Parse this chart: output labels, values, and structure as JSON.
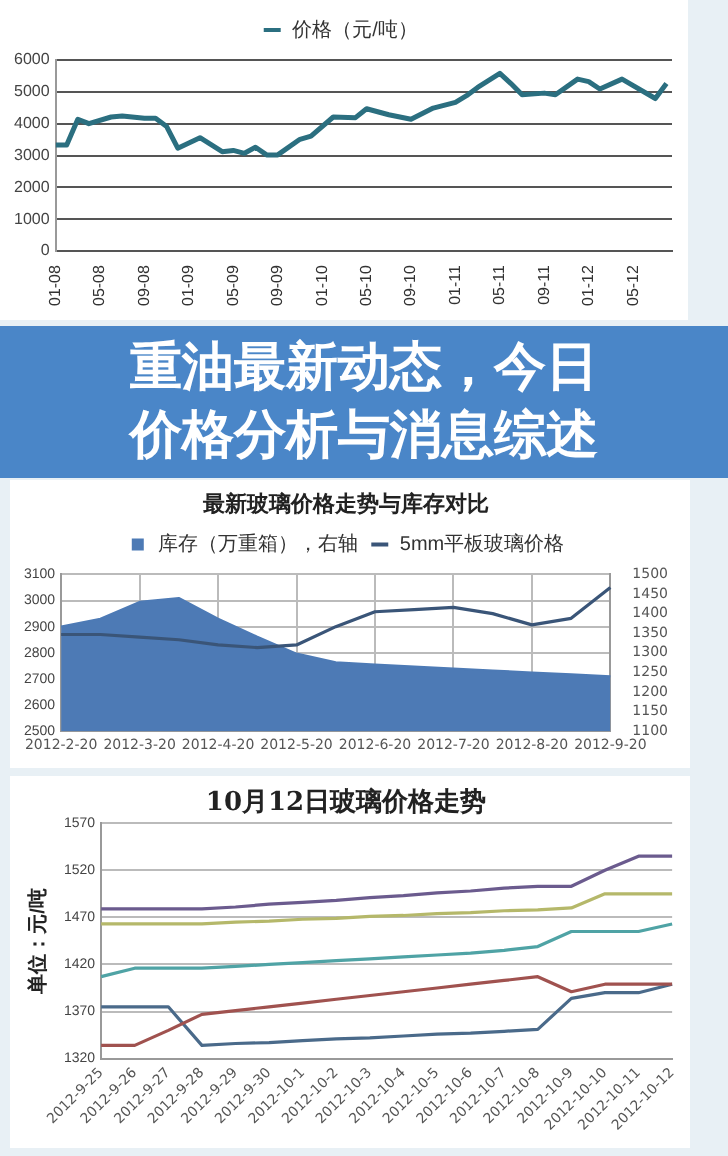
{
  "chart_data": [
    {
      "type": "line",
      "x": [
        "2008-01",
        "2008-02",
        "2008-03",
        "2008-04",
        "2008-06",
        "2008-07",
        "2008-09",
        "2008-10",
        "2008-11",
        "2008-12",
        "2009-02",
        "2009-04",
        "2009-05",
        "2009-06",
        "2009-07",
        "2009-08",
        "2009-09",
        "2009-11",
        "2009-12",
        "2010-02",
        "2010-04",
        "2010-05",
        "2010-07",
        "2010-09",
        "2010-11",
        "2011-01",
        "2011-02",
        "2011-03",
        "2011-05",
        "2011-06",
        "2011-07",
        "2011-09",
        "2011-10",
        "2011-12",
        "2012-01",
        "2012-02",
        "2012-04",
        "2012-07",
        "2012-08"
      ],
      "series": [
        {
          "name": "价格（元/吨）",
          "color": "#2b6f80",
          "values": [
            3330,
            3330,
            4140,
            4000,
            4210,
            4240,
            4170,
            4170,
            3910,
            3230,
            3560,
            3120,
            3160,
            3070,
            3260,
            3020,
            3020,
            3510,
            3610,
            4210,
            4190,
            4470,
            4280,
            4140,
            4490,
            4670,
            4880,
            5140,
            5580,
            5260,
            4910,
            4960,
            4910,
            5400,
            5320,
            5090,
            5400,
            4790,
            5260
          ]
        }
      ],
      "xlim": [
        "2008-01",
        "2012-08-16"
      ],
      "xticks": [
        {
          "value": "2008-01",
          "label": "01-08"
        },
        {
          "value": "2008-05",
          "label": "05-08"
        },
        {
          "value": "2008-09",
          "label": "09-08"
        },
        {
          "value": "2009-01",
          "label": "01-09"
        },
        {
          "value": "2009-05",
          "label": "05-09"
        },
        {
          "value": "2009-09",
          "label": "09-09"
        },
        {
          "value": "2010-01",
          "label": "01-10"
        },
        {
          "value": "2010-05",
          "label": "05-10"
        },
        {
          "value": "2010-09",
          "label": "09-10"
        },
        {
          "value": "2011-01",
          "label": "01-11"
        },
        {
          "value": "2011-05",
          "label": "05-11"
        },
        {
          "value": "2011-09",
          "label": "09-11"
        },
        {
          "value": "2012-01",
          "label": "01-12"
        },
        {
          "value": "2012-05",
          "label": "05-12"
        }
      ],
      "ylim": [
        0,
        6000
      ],
      "yticks": [
        0,
        1000,
        2000,
        3000,
        4000,
        5000,
        6000
      ],
      "grid": "y",
      "legend": "top",
      "marker": "none"
    },
    {
      "type": "line",
      "title": "最新玻璃价格走势与库存对比",
      "categories": [
        "2012-2-20",
        null,
        "2012-3-20",
        null,
        "2012-4-20",
        null,
        "2012-5-20",
        null,
        "2012-6-20",
        null,
        "2012-7-20",
        null,
        "2012-8-20",
        null,
        "2012-9-20"
      ],
      "series": [
        {
          "name": "库存（万重箱），右轴",
          "type": "area",
          "axis": "y2",
          "color": "#4d7ab5",
          "values": [
            1367,
            1387,
            1430,
            1440,
            1387,
            1341,
            1298,
            1276,
            1270,
            1265,
            1260,
            1255,
            1250,
            1245,
            1240
          ]
        },
        {
          "name": "5mm平板玻璃价格",
          "color": "#3a5578",
          "values": [
            2870,
            2870,
            2860,
            2850,
            2830,
            2820,
            2830,
            2900,
            2957,
            2965,
            2974,
            2950,
            2907,
            2932,
            3050
          ]
        }
      ],
      "ylim": [
        2500,
        3100
      ],
      "yticks": [
        2500,
        2600,
        2700,
        2800,
        2900,
        3000,
        3100
      ],
      "y2lim": [
        1100,
        1500
      ],
      "y2ticks": [
        1100,
        1150,
        1200,
        1250,
        1300,
        1350,
        1400,
        1450,
        1500
      ],
      "grid": true,
      "legend": "top",
      "marker": "none"
    },
    {
      "type": "other",
      "title": "重油最新动态，今日价格分析与消息综述"
    },
    {
      "type": "line",
      "title": "10月12日玻璃价格走势",
      "ylabel": "单位：元/吨",
      "categories": [
        "2012-9-25",
        "2012-9-26",
        "2012-9-27",
        "2012-9-28",
        "2012-9-29",
        "2012-9-30",
        "2012-10-1",
        "2012-10-2",
        "2012-10-3",
        "2012-10-4",
        "2012-10-5",
        "2012-10-6",
        "2012-10-7",
        "2012-10-8",
        "2012-10-9",
        "2012-10-10",
        "2012-10-11",
        "2012-10-12"
      ],
      "series": [
        {
          "color": "#6b5b8e",
          "values": [
            1479,
            1479,
            1479,
            1479,
            1481,
            1484,
            1486,
            1488,
            1491,
            1493,
            1496,
            1498,
            1501,
            1503,
            1503,
            1520,
            1535,
            1535
          ]
        },
        {
          "color": "#b5b86a",
          "values": [
            1463,
            1463,
            1463,
            1463,
            1465,
            1466,
            1468,
            1469,
            1471,
            1472,
            1474,
            1475,
            1477,
            1478,
            1480,
            1495,
            1495,
            1495
          ]
        },
        {
          "color": "#4fa3a5",
          "values": [
            1407,
            1416,
            1416,
            1416,
            1418,
            1420,
            1422,
            1424,
            1426,
            1428,
            1430,
            1432,
            1435,
            1439,
            1455,
            1455,
            1455,
            1463
          ]
        },
        {
          "color": "#a0524f",
          "values": [
            1334,
            1334,
            1350,
            1367,
            1371,
            1375,
            1379,
            1383,
            1387,
            1391,
            1395,
            1399,
            1403,
            1407,
            1391,
            1399,
            1399,
            1399
          ]
        },
        {
          "color": "#4a6a8a",
          "values": [
            1375,
            1375,
            1375,
            1334,
            1336,
            1337,
            1339,
            1341,
            1342,
            1344,
            1346,
            1347,
            1349,
            1351,
            1384,
            1390,
            1390,
            1399
          ]
        }
      ],
      "ylim": [
        1320,
        1570
      ],
      "yticks": [
        1320,
        1370,
        1420,
        1470,
        1520,
        1570
      ],
      "grid": "y",
      "marker": "none"
    }
  ]
}
